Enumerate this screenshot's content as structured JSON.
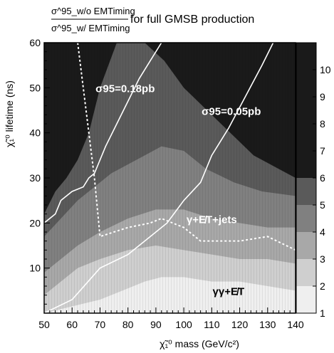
{
  "chart_data": {
    "type": "heatmap",
    "title": {
      "numerator": "σ^95_w/o EMTiming",
      "denominator": "σ^95_w/ EMTiming",
      "suffix": "for full GMSB production"
    },
    "xlabel": "χ̃₁⁰ mass (GeV/c²)",
    "ylabel": "χ̃₁⁰ lifetime (ns)",
    "xlim": [
      50,
      140
    ],
    "ylim": [
      0,
      60
    ],
    "xticks": [
      "50",
      "60",
      "70",
      "80",
      "90",
      "100",
      "110",
      "120",
      "130",
      "140"
    ],
    "yticks": [
      "10",
      "20",
      "30",
      "40",
      "50",
      "60"
    ],
    "colorbar": {
      "range": [
        1,
        11
      ],
      "ticks": [
        "1",
        "2",
        "3",
        "4",
        "5",
        "6",
        "7",
        "8",
        "9",
        "10"
      ],
      "levels": [
        {
          "from": 1,
          "to": 2,
          "color": "#efefef"
        },
        {
          "from": 2,
          "to": 3,
          "color": "#cfcfcf"
        },
        {
          "from": 3,
          "to": 4,
          "color": "#a8a8a8"
        },
        {
          "from": 4,
          "to": 5,
          "color": "#808080"
        },
        {
          "from": 5,
          "to": 6,
          "color": "#5a5a5a"
        },
        {
          "from": 6,
          "to": 11,
          "color": "#1a1a1a"
        }
      ]
    },
    "contours": [
      {
        "level": 6,
        "points": [
          [
            50,
            22
          ],
          [
            54,
            27
          ],
          [
            58,
            30
          ],
          [
            62,
            34
          ],
          [
            66,
            40
          ],
          [
            70,
            50
          ],
          [
            76,
            60
          ],
          [
            86,
            60
          ],
          [
            93,
            56
          ],
          [
            100,
            50
          ],
          [
            110,
            44
          ],
          [
            125,
            35
          ],
          [
            140,
            30
          ],
          [
            140,
            60
          ]
        ]
      },
      {
        "level": 5,
        "points": [
          [
            50,
            17
          ],
          [
            56,
            21
          ],
          [
            62,
            25
          ],
          [
            68,
            28
          ],
          [
            74,
            31
          ],
          [
            80,
            33
          ],
          [
            86,
            35
          ],
          [
            92,
            37
          ],
          [
            100,
            36
          ],
          [
            108,
            32
          ],
          [
            118,
            29
          ],
          [
            128,
            27
          ],
          [
            140,
            26
          ]
        ]
      },
      {
        "level": 4,
        "points": [
          [
            50,
            9
          ],
          [
            56,
            12
          ],
          [
            62,
            15
          ],
          [
            70,
            18
          ],
          [
            80,
            21
          ],
          [
            90,
            23
          ],
          [
            100,
            23
          ],
          [
            110,
            21
          ],
          [
            120,
            20
          ],
          [
            130,
            19
          ],
          [
            140,
            19
          ]
        ]
      },
      {
        "level": 3,
        "points": [
          [
            50,
            4
          ],
          [
            56,
            7
          ],
          [
            62,
            10
          ],
          [
            70,
            12
          ],
          [
            80,
            14
          ],
          [
            90,
            15
          ],
          [
            100,
            14
          ],
          [
            110,
            13
          ],
          [
            120,
            12
          ],
          [
            130,
            12
          ],
          [
            140,
            11
          ]
        ]
      },
      {
        "level": 2,
        "points": [
          [
            50,
            0
          ],
          [
            70,
            3
          ],
          [
            78,
            5
          ],
          [
            86,
            7
          ],
          [
            92,
            8
          ],
          [
            100,
            8
          ],
          [
            110,
            7
          ],
          [
            120,
            7
          ],
          [
            130,
            6
          ],
          [
            140,
            5
          ]
        ]
      }
    ],
    "series": [
      {
        "name": "σ95=0.18pb",
        "style": "solid-white",
        "x": [
          50,
          54,
          56,
          60,
          64,
          66,
          68,
          72,
          76,
          80,
          84,
          88,
          90,
          92
        ],
        "y": [
          20,
          22,
          25,
          27,
          28,
          30,
          31,
          37,
          42,
          47,
          52,
          56,
          58,
          60
        ]
      },
      {
        "name": "σ95=0.05pb",
        "style": "solid-white",
        "x": [
          50,
          60,
          70,
          80,
          88,
          94,
          100,
          106,
          110,
          116,
          122,
          128,
          132
        ],
        "y": [
          0,
          3,
          10,
          13,
          17,
          20,
          25,
          29,
          35,
          41,
          48,
          55,
          60
        ]
      },
      {
        "name": "γγ+E̸T / γ+E̸T+jets boundary",
        "style": "dashed-white",
        "x": [
          62,
          64,
          66,
          68,
          70,
          80,
          88,
          92,
          100,
          106,
          112,
          120,
          130,
          140
        ],
        "y": [
          60,
          50,
          40,
          30,
          17,
          19,
          20,
          21,
          19,
          16,
          16,
          16,
          17,
          14
        ]
      }
    ],
    "annotations": [
      {
        "text": "σ95=0.18pb",
        "x": 79,
        "y": 49,
        "color": "white"
      },
      {
        "text": "σ95=0.05pb",
        "x": 117,
        "y": 44,
        "color": "white"
      },
      {
        "text": "γ+E̸T+jets",
        "x": 110,
        "y": 20,
        "color": "white"
      },
      {
        "text": "γγ+E̸T",
        "x": 116,
        "y": 4,
        "color": "black"
      }
    ]
  }
}
